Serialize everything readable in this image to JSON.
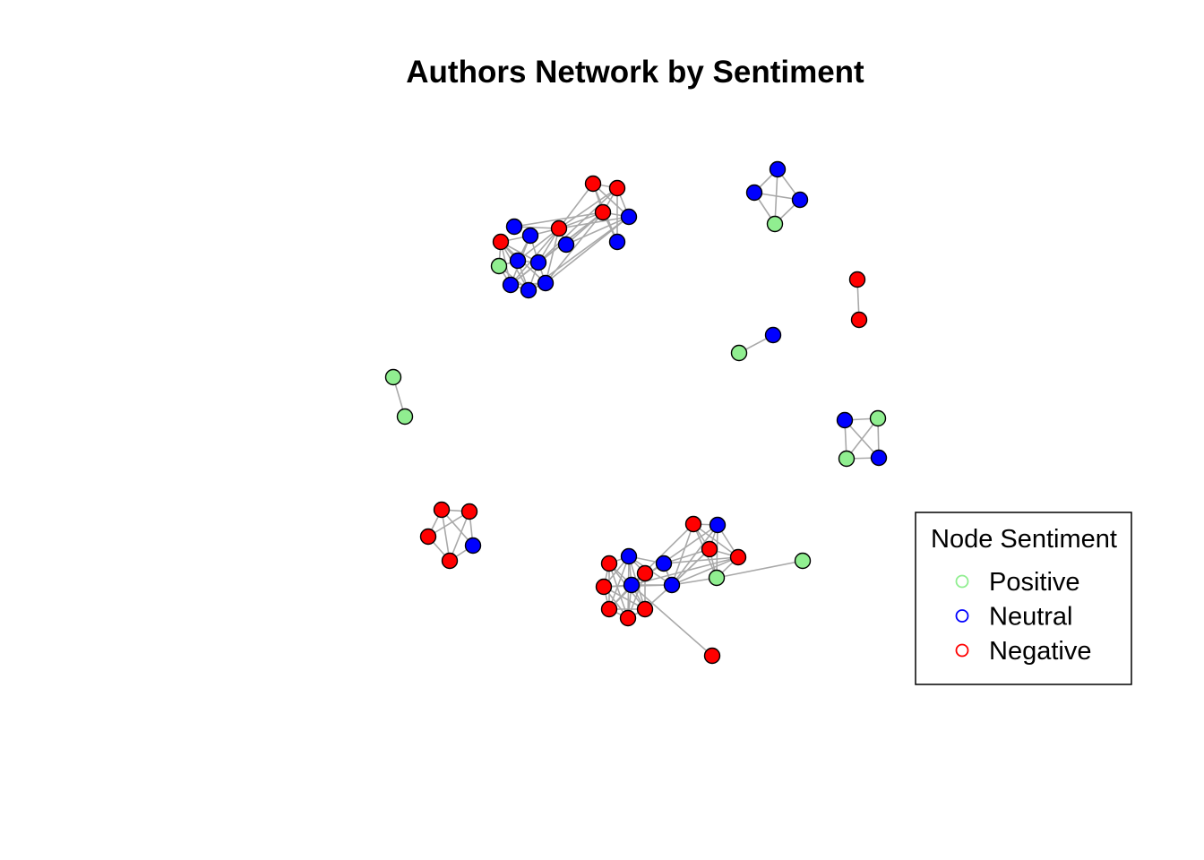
{
  "title": "Authors Network by Sentiment",
  "legend": {
    "title": "Node Sentiment",
    "items": [
      {
        "label": "Positive",
        "sentiment": "positive"
      },
      {
        "label": "Neutral",
        "sentiment": "neutral"
      },
      {
        "label": "Negative",
        "sentiment": "negative"
      }
    ]
  },
  "colors": {
    "positive": "#90ee90",
    "neutral": "#0000ff",
    "negative": "#ff0000",
    "edge": "#a9a9a9",
    "node_border": "#000000"
  },
  "network": {
    "components": [
      {
        "name": "cluster-top-left",
        "nodes": [
          {
            "id": "a1",
            "sentiment": "negative"
          },
          {
            "id": "a2",
            "sentiment": "neutral"
          },
          {
            "id": "a3",
            "sentiment": "neutral"
          },
          {
            "id": "a4",
            "sentiment": "neutral"
          },
          {
            "id": "a5",
            "sentiment": "negative"
          },
          {
            "id": "a6",
            "sentiment": "neutral"
          },
          {
            "id": "a7",
            "sentiment": "negative"
          },
          {
            "id": "a8",
            "sentiment": "neutral"
          },
          {
            "id": "a9",
            "sentiment": "negative"
          },
          {
            "id": "a10",
            "sentiment": "negative"
          },
          {
            "id": "a11",
            "sentiment": "neutral"
          },
          {
            "id": "a12",
            "sentiment": "neutral"
          },
          {
            "id": "a13",
            "sentiment": "positive"
          },
          {
            "id": "a14",
            "sentiment": "neutral"
          },
          {
            "id": "a15",
            "sentiment": "neutral"
          },
          {
            "id": "a16",
            "sentiment": "neutral"
          },
          {
            "id": "a17",
            "sentiment": "neutral"
          }
        ]
      },
      {
        "name": "cluster-top-right-4",
        "nodes": [
          {
            "id": "b1",
            "sentiment": "neutral"
          },
          {
            "id": "b2",
            "sentiment": "neutral"
          },
          {
            "id": "b3",
            "sentiment": "neutral"
          },
          {
            "id": "b4",
            "sentiment": "positive"
          }
        ]
      },
      {
        "name": "pair-red",
        "nodes": [
          {
            "id": "c1",
            "sentiment": "negative"
          },
          {
            "id": "c2",
            "sentiment": "negative"
          }
        ]
      },
      {
        "name": "pair-green-blue",
        "nodes": [
          {
            "id": "d1",
            "sentiment": "neutral"
          },
          {
            "id": "d2",
            "sentiment": "positive"
          }
        ]
      },
      {
        "name": "pair-green",
        "nodes": [
          {
            "id": "e1",
            "sentiment": "positive"
          },
          {
            "id": "e2",
            "sentiment": "positive"
          }
        ]
      },
      {
        "name": "square-4",
        "nodes": [
          {
            "id": "f1",
            "sentiment": "neutral"
          },
          {
            "id": "f2",
            "sentiment": "positive"
          },
          {
            "id": "f3",
            "sentiment": "positive"
          },
          {
            "id": "f4",
            "sentiment": "neutral"
          }
        ]
      },
      {
        "name": "pentagon-5",
        "nodes": [
          {
            "id": "g1",
            "sentiment": "negative"
          },
          {
            "id": "g2",
            "sentiment": "negative"
          },
          {
            "id": "g3",
            "sentiment": "negative"
          },
          {
            "id": "g4",
            "sentiment": "neutral"
          },
          {
            "id": "g5",
            "sentiment": "negative"
          }
        ]
      },
      {
        "name": "cluster-bottom",
        "nodes": [
          {
            "id": "h1",
            "sentiment": "negative"
          },
          {
            "id": "h2",
            "sentiment": "neutral"
          },
          {
            "id": "h3",
            "sentiment": "negative"
          },
          {
            "id": "h4",
            "sentiment": "negative"
          },
          {
            "id": "h5",
            "sentiment": "positive"
          },
          {
            "id": "h6",
            "sentiment": "positive"
          },
          {
            "id": "h7",
            "sentiment": "neutral"
          },
          {
            "id": "h8",
            "sentiment": "negative"
          },
          {
            "id": "h9",
            "sentiment": "neutral"
          },
          {
            "id": "h10",
            "sentiment": "neutral"
          },
          {
            "id": "h11",
            "sentiment": "negative"
          },
          {
            "id": "h12",
            "sentiment": "neutral"
          },
          {
            "id": "h13",
            "sentiment": "negative"
          },
          {
            "id": "h14",
            "sentiment": "negative"
          },
          {
            "id": "h15",
            "sentiment": "negative"
          },
          {
            "id": "h16",
            "sentiment": "negative"
          },
          {
            "id": "h17",
            "sentiment": "negative"
          }
        ]
      }
    ],
    "edges": [
      [
        "a1",
        "a5"
      ],
      [
        "a1",
        "a7"
      ],
      [
        "a1",
        "a8"
      ],
      [
        "a5",
        "a7"
      ],
      [
        "a5",
        "a8"
      ],
      [
        "a7",
        "a8"
      ],
      [
        "a1",
        "a9"
      ],
      [
        "a5",
        "a9"
      ],
      [
        "a7",
        "a9"
      ],
      [
        "a8",
        "a9"
      ],
      [
        "a7",
        "a3"
      ],
      [
        "a7",
        "a2"
      ],
      [
        "a5",
        "a2"
      ],
      [
        "a8",
        "a3"
      ],
      [
        "a1",
        "a2"
      ],
      [
        "a7",
        "a4"
      ],
      [
        "a9",
        "a3"
      ],
      [
        "a9",
        "a4"
      ],
      [
        "a10",
        "a12"
      ],
      [
        "a10",
        "a14"
      ],
      [
        "a10",
        "a11"
      ],
      [
        "a10",
        "a13"
      ],
      [
        "a10",
        "a15"
      ],
      [
        "a10",
        "a16"
      ],
      [
        "a10",
        "a17"
      ],
      [
        "a11",
        "a12"
      ],
      [
        "a11",
        "a14"
      ],
      [
        "a11",
        "a15"
      ],
      [
        "a11",
        "a9"
      ],
      [
        "a12",
        "a14"
      ],
      [
        "a12",
        "a13"
      ],
      [
        "a12",
        "a16"
      ],
      [
        "a13",
        "a15"
      ],
      [
        "a13",
        "a16"
      ],
      [
        "a14",
        "a15"
      ],
      [
        "a14",
        "a16"
      ],
      [
        "a14",
        "a17"
      ],
      [
        "a15",
        "a16"
      ],
      [
        "a15",
        "a17"
      ],
      [
        "a16",
        "a17"
      ],
      [
        "a9",
        "a12"
      ],
      [
        "a9",
        "a14"
      ],
      [
        "a9",
        "a15"
      ],
      [
        "a9",
        "a17"
      ],
      [
        "a7",
        "a14"
      ],
      [
        "a7",
        "a15"
      ],
      [
        "a7",
        "a17"
      ],
      [
        "a5",
        "a14"
      ],
      [
        "a8",
        "a16"
      ],
      [
        "a8",
        "a17"
      ],
      [
        "b1",
        "b2"
      ],
      [
        "b1",
        "b3"
      ],
      [
        "b1",
        "b4"
      ],
      [
        "b2",
        "b3"
      ],
      [
        "b2",
        "b4"
      ],
      [
        "b3",
        "b4"
      ],
      [
        "c1",
        "c2"
      ],
      [
        "d1",
        "d2"
      ],
      [
        "e1",
        "e2"
      ],
      [
        "f1",
        "f2"
      ],
      [
        "f1",
        "f3"
      ],
      [
        "f1",
        "f4"
      ],
      [
        "f2",
        "f3"
      ],
      [
        "f2",
        "f4"
      ],
      [
        "f3",
        "f4"
      ],
      [
        "g1",
        "g2"
      ],
      [
        "g1",
        "g3"
      ],
      [
        "g1",
        "g4"
      ],
      [
        "g1",
        "g5"
      ],
      [
        "g2",
        "g3"
      ],
      [
        "g2",
        "g4"
      ],
      [
        "g2",
        "g5"
      ],
      [
        "g3",
        "g5"
      ],
      [
        "g4",
        "g5"
      ],
      [
        "h1",
        "h2"
      ],
      [
        "h1",
        "h3"
      ],
      [
        "h1",
        "h4"
      ],
      [
        "h1",
        "h5"
      ],
      [
        "h2",
        "h3"
      ],
      [
        "h2",
        "h4"
      ],
      [
        "h2",
        "h5"
      ],
      [
        "h3",
        "h4"
      ],
      [
        "h3",
        "h5"
      ],
      [
        "h4",
        "h5"
      ],
      [
        "h5",
        "h6"
      ],
      [
        "h7",
        "h4"
      ],
      [
        "h7",
        "h3"
      ],
      [
        "h9",
        "h1"
      ],
      [
        "h9",
        "h2"
      ],
      [
        "h9",
        "h3"
      ],
      [
        "h9",
        "h4"
      ],
      [
        "h9",
        "h5"
      ],
      [
        "h9",
        "h7"
      ],
      [
        "h10",
        "h1"
      ],
      [
        "h10",
        "h2"
      ],
      [
        "h10",
        "h4"
      ],
      [
        "h10",
        "h11"
      ],
      [
        "h10",
        "h12"
      ],
      [
        "h10",
        "h13"
      ],
      [
        "h10",
        "h14"
      ],
      [
        "h10",
        "h15"
      ],
      [
        "h10",
        "h16"
      ],
      [
        "h10",
        "h17"
      ],
      [
        "h10",
        "h9"
      ],
      [
        "h10",
        "h7"
      ],
      [
        "h11",
        "h12"
      ],
      [
        "h11",
        "h13"
      ],
      [
        "h11",
        "h14"
      ],
      [
        "h11",
        "h15"
      ],
      [
        "h11",
        "h16"
      ],
      [
        "h12",
        "h13"
      ],
      [
        "h12",
        "h14"
      ],
      [
        "h12",
        "h15"
      ],
      [
        "h12",
        "h16"
      ],
      [
        "h12",
        "h17"
      ],
      [
        "h13",
        "h14"
      ],
      [
        "h13",
        "h15"
      ],
      [
        "h13",
        "h16"
      ],
      [
        "h14",
        "h15"
      ],
      [
        "h14",
        "h16"
      ],
      [
        "h14",
        "h17"
      ],
      [
        "h15",
        "h16"
      ],
      [
        "h15",
        "h17"
      ],
      [
        "h16",
        "h17"
      ],
      [
        "h9",
        "h12"
      ],
      [
        "h9",
        "h13"
      ],
      [
        "h9",
        "h16"
      ],
      [
        "h7",
        "h12"
      ],
      [
        "h7",
        "h9"
      ],
      [
        "h10",
        "h8"
      ],
      [
        "h3",
        "h9"
      ]
    ]
  }
}
